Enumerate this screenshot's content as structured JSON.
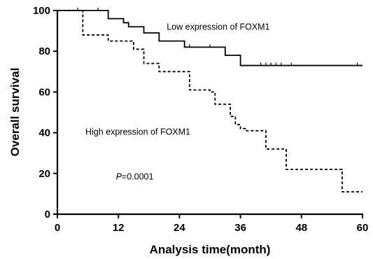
{
  "chart_data": {
    "type": "line",
    "xlabel": "Analysis time(month)",
    "ylabel": "Overall survival",
    "xlim": [
      0,
      60
    ],
    "ylim": [
      0,
      100
    ],
    "xticks": [
      0,
      12,
      24,
      36,
      48,
      60
    ],
    "yticks": [
      0,
      20,
      40,
      60,
      80,
      100
    ],
    "grid": false,
    "series": [
      {
        "name": "Low expression of FOXM1",
        "line_style": "solid",
        "color": "#000000",
        "x": [
          0,
          10,
          10,
          13,
          13,
          14,
          14,
          17,
          17,
          20,
          20,
          25,
          25,
          33,
          33,
          36,
          36,
          60
        ],
        "y": [
          100,
          100,
          96,
          96,
          94,
          94,
          92,
          92,
          89,
          89,
          85,
          85,
          82,
          82,
          78,
          78,
          73,
          73
        ],
        "censored": [
          {
            "x": 4,
            "y": 100
          },
          {
            "x": 8,
            "y": 100
          },
          {
            "x": 26,
            "y": 82
          },
          {
            "x": 30,
            "y": 82
          },
          {
            "x": 40,
            "y": 73
          },
          {
            "x": 41,
            "y": 73
          },
          {
            "x": 42,
            "y": 73
          },
          {
            "x": 43,
            "y": 73
          },
          {
            "x": 44,
            "y": 73
          },
          {
            "x": 46,
            "y": 73
          },
          {
            "x": 59,
            "y": 73
          }
        ]
      },
      {
        "name": "High expression of FOXM1",
        "line_style": "dashed",
        "color": "#000000",
        "x": [
          0,
          5,
          5,
          10,
          10,
          15,
          15,
          17,
          17,
          20,
          20,
          26,
          26,
          30,
          30,
          31,
          31,
          34,
          34,
          35,
          35,
          36,
          36,
          37,
          37,
          41,
          41,
          45,
          45,
          56,
          56,
          60
        ],
        "y": [
          100,
          100,
          88,
          88,
          85,
          85,
          81,
          81,
          74,
          74,
          70,
          70,
          61,
          61,
          60,
          60,
          54,
          54,
          48,
          48,
          44,
          44,
          42,
          42,
          41,
          41,
          32,
          32,
          22,
          22,
          11,
          11
        ],
        "censored": []
      }
    ],
    "annotations": [
      {
        "id": "low",
        "text": "Low expression of FOXM1",
        "x": 21.5,
        "y": 90.5
      },
      {
        "id": "high",
        "text": "High expression of FOXM1",
        "x": 5.5,
        "y": 39
      },
      {
        "id": "p",
        "p_symbol": "P",
        "p_value": "=0.0001",
        "x": 11.5,
        "y": 17
      }
    ]
  }
}
